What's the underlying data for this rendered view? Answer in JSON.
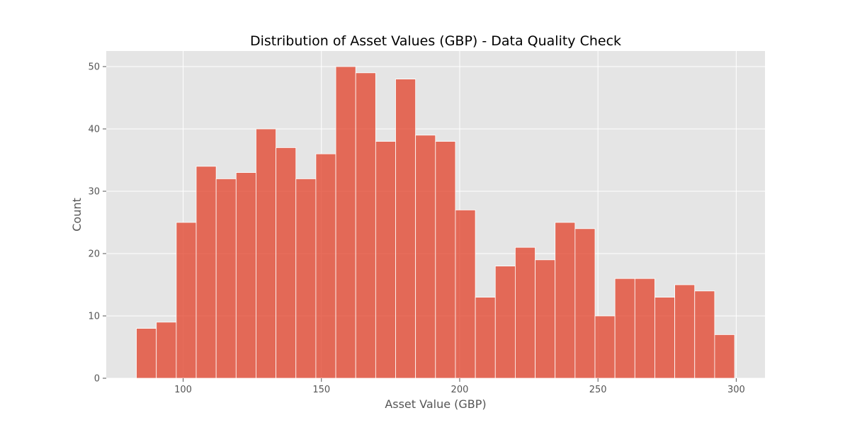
{
  "chart_data": {
    "type": "bar",
    "title": "Distribution of Asset Values (GBP) - Data Quality Check",
    "xlabel": "Asset Value (GBP)",
    "ylabel": "Count",
    "xlim": [
      72.2,
      310.4
    ],
    "ylim": [
      0,
      52.5
    ],
    "xticks": [
      100,
      150,
      200,
      250,
      300
    ],
    "yticks": [
      0,
      10,
      20,
      30,
      40,
      50
    ],
    "grid": true,
    "bar_color": "#e24a33",
    "bar_alpha": 0.8,
    "background_color": "#e5e5e5",
    "bins": {
      "start": 83.1,
      "width": 7.21,
      "counts": [
        8,
        9,
        25,
        34,
        32,
        33,
        40,
        37,
        32,
        36,
        50,
        49,
        38,
        48,
        39,
        38,
        27,
        13,
        18,
        21,
        19,
        25,
        24,
        10,
        16,
        16,
        13,
        15,
        14,
        7
      ]
    }
  }
}
